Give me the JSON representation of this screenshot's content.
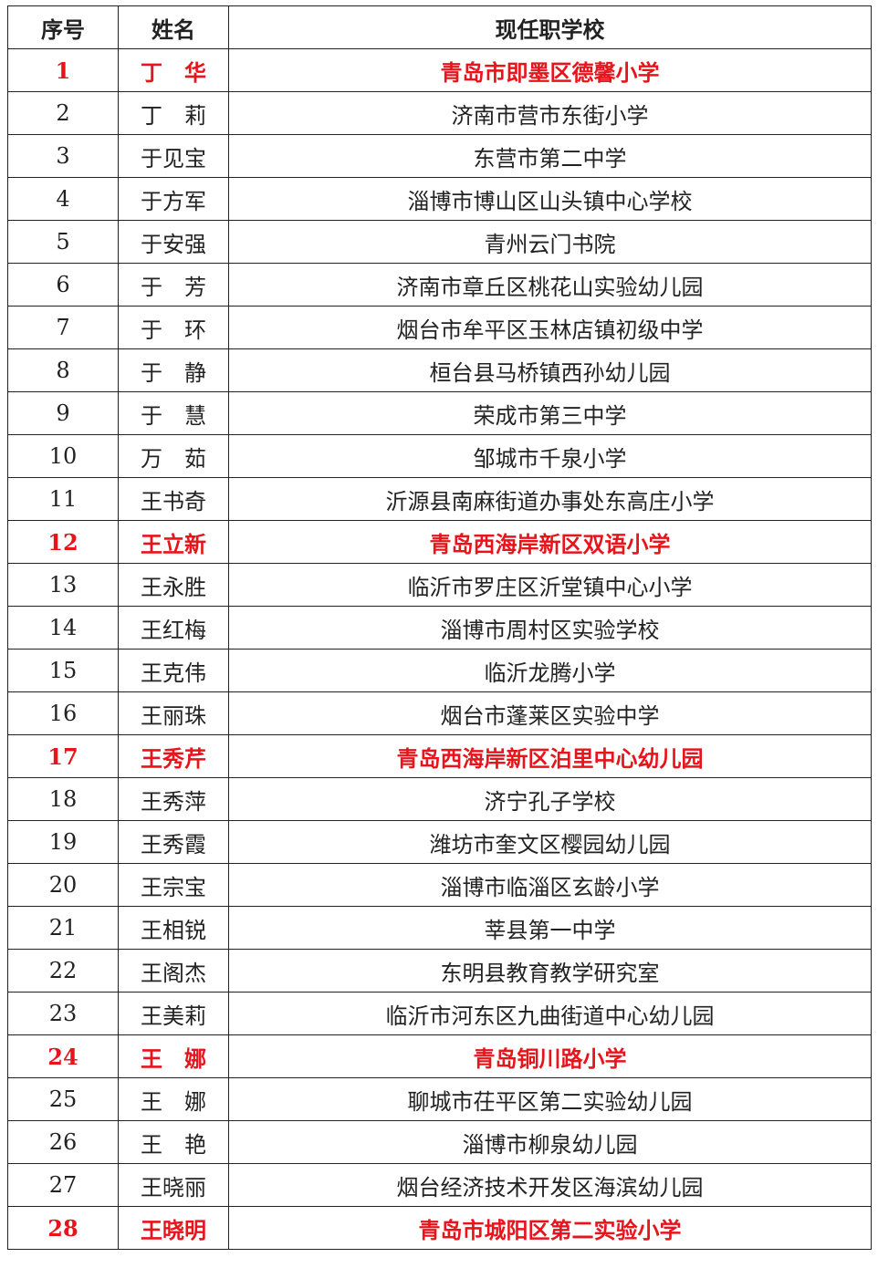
{
  "table": {
    "header": [
      "序号",
      "姓名",
      "现任职学校"
    ],
    "rows": [
      {
        "cells": [
          1,
          "丁　华",
          "青岛市即墨区德馨小学"
        ],
        "color": "#e8141b"
      },
      {
        "cells": [
          2,
          "丁　莉",
          "济南市营市东街小学"
        ]
      },
      {
        "cells": [
          3,
          "于见宝",
          "东营市第二中学"
        ]
      },
      {
        "cells": [
          4,
          "于方军",
          "淄博市博山区山头镇中心学校"
        ]
      },
      {
        "cells": [
          5,
          "于安强",
          "青州云门书院"
        ]
      },
      {
        "cells": [
          6,
          "于　芳",
          "济南市章丘区桃花山实验幼儿园"
        ]
      },
      {
        "cells": [
          7,
          "于　环",
          "烟台市牟平区玉林店镇初级中学"
        ]
      },
      {
        "cells": [
          8,
          "于　静",
          "桓台县马桥镇西孙幼儿园"
        ]
      },
      {
        "cells": [
          9,
          "于　慧",
          "荣成市第三中学"
        ]
      },
      {
        "cells": [
          10,
          "万　茹",
          "邹城市千泉小学"
        ]
      },
      {
        "cells": [
          11,
          "王书奇",
          "沂源县南麻街道办事处东高庄小学"
        ]
      },
      {
        "cells": [
          12,
          "王立新",
          "青岛西海岸新区双语小学"
        ],
        "color": "#e8141b"
      },
      {
        "cells": [
          13,
          "王永胜",
          "临沂市罗庄区沂堂镇中心小学"
        ]
      },
      {
        "cells": [
          14,
          "王红梅",
          "淄博市周村区实验学校"
        ]
      },
      {
        "cells": [
          15,
          "王克伟",
          "临沂龙腾小学"
        ]
      },
      {
        "cells": [
          16,
          "王丽珠",
          "烟台市蓬莱区实验中学"
        ]
      },
      {
        "cells": [
          17,
          "王秀芹",
          "青岛西海岸新区泊里中心幼儿园"
        ],
        "color": "#e8141b"
      },
      {
        "cells": [
          18,
          "王秀萍",
          "济宁孔子学校"
        ]
      },
      {
        "cells": [
          19,
          "王秀霞",
          "潍坊市奎文区樱园幼儿园"
        ]
      },
      {
        "cells": [
          20,
          "王宗宝",
          "淄博市临淄区玄龄小学"
        ]
      },
      {
        "cells": [
          21,
          "王相锐",
          "莘县第一中学"
        ]
      },
      {
        "cells": [
          22,
          "王阁杰",
          "东明县教育教学研究室"
        ]
      },
      {
        "cells": [
          23,
          "王美莉",
          "临沂市河东区九曲街道中心幼儿园"
        ]
      },
      {
        "cells": [
          24,
          "王　娜",
          "青岛铜川路小学"
        ],
        "color": "#e8141b"
      },
      {
        "cells": [
          25,
          "王　娜",
          "聊城市茌平区第二实验幼儿园"
        ]
      },
      {
        "cells": [
          26,
          "王　艳",
          "淄博市柳泉幼儿园"
        ]
      },
      {
        "cells": [
          27,
          "王晓丽",
          "烟台经济技术开发区海滨幼儿园"
        ]
      },
      {
        "cells": [
          28,
          "王晓明",
          "青岛市城阳区第二实验小学"
        ],
        "color": "#e8141b"
      }
    ]
  }
}
